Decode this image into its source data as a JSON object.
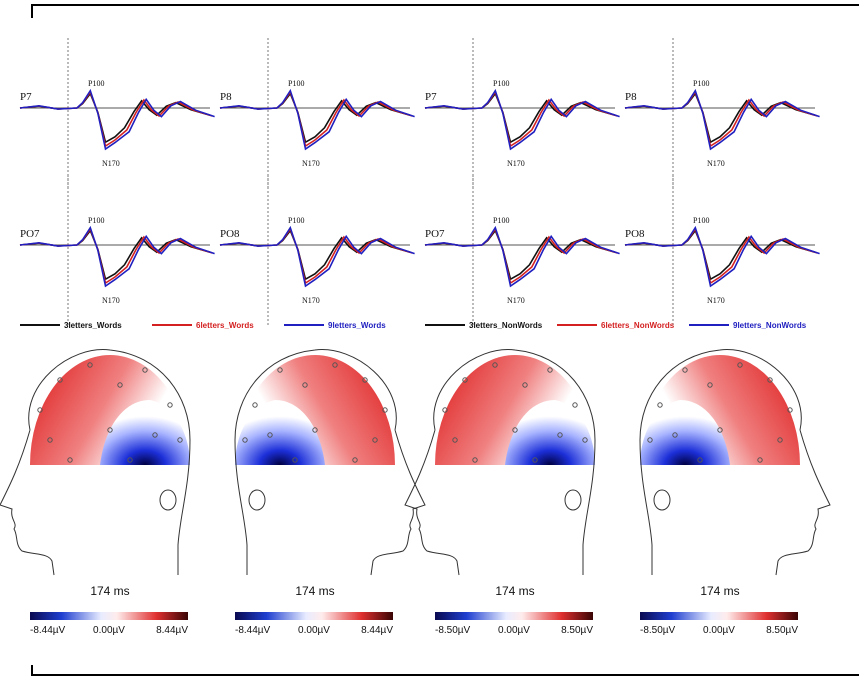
{
  "panels": [
    {
      "erp": [
        {
          "label": "P7",
          "peaks": [
            "P100",
            "N170"
          ]
        },
        {
          "label": "P8",
          "peaks": [
            "P100",
            "N170"
          ]
        },
        {
          "label": "PO7",
          "peaks": [
            "P100",
            "N170"
          ]
        },
        {
          "label": "PO8",
          "peaks": [
            "P100",
            "N170"
          ]
        }
      ],
      "legend": [
        "3letters_Words",
        "6letters_Words",
        "9letters_Words"
      ],
      "maps": [
        {
          "time": "174 ms",
          "scale": [
            "-8.44µV",
            "0.00µV",
            "8.44µV"
          ]
        },
        {
          "time": "174 ms",
          "scale": [
            "-8.44µV",
            "0.00µV",
            "8.44µV"
          ]
        }
      ]
    },
    {
      "erp": [
        {
          "label": "P7",
          "peaks": [
            "P100",
            "N170"
          ]
        },
        {
          "label": "P8",
          "peaks": [
            "P100",
            "N170"
          ]
        },
        {
          "label": "PO7",
          "peaks": [
            "P100",
            "N170"
          ]
        },
        {
          "label": "PO8",
          "peaks": [
            "P100",
            "N170"
          ]
        }
      ],
      "legend": [
        "3letters_NonWords",
        "6letters_NonWords",
        "9letters_NonWords"
      ],
      "maps": [
        {
          "time": "174 ms",
          "scale": [
            "-8.50µV",
            "0.00µV",
            "8.50µV"
          ]
        },
        {
          "time": "174 ms",
          "scale": [
            "-8.50µV",
            "0.00µV",
            "8.50µV"
          ]
        }
      ]
    }
  ]
}
